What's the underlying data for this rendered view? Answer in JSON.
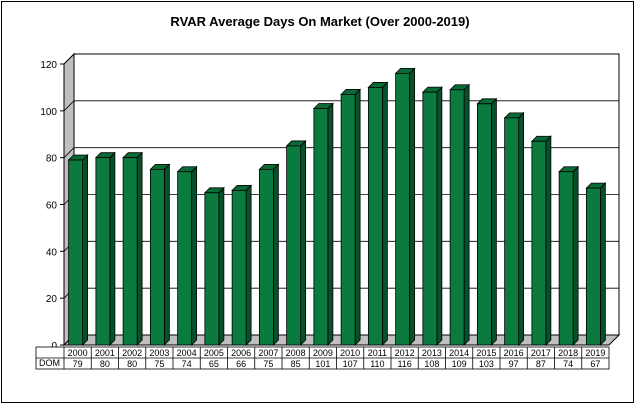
{
  "chart_data": {
    "type": "bar",
    "title": "RVAR Average Days On Market (Over 2000-2019)",
    "categories": [
      "2000",
      "2001",
      "2002",
      "2003",
      "2004",
      "2005",
      "2006",
      "2007",
      "2008",
      "2009",
      "2010",
      "2011",
      "2012",
      "2013",
      "2014",
      "2015",
      "2016",
      "2017",
      "2018",
      "2019"
    ],
    "series": [
      {
        "name": "DOM",
        "values": [
          79,
          80,
          80,
          75,
          74,
          65,
          66,
          75,
          85,
          101,
          107,
          110,
          116,
          108,
          109,
          103,
          97,
          87,
          74,
          67
        ]
      }
    ],
    "ylim": [
      0,
      120
    ],
    "yticks": [
      0,
      20,
      40,
      60,
      80,
      100,
      120
    ],
    "grid": true,
    "data_table": true,
    "colors": {
      "bar_front": "#0b7a3e",
      "bar_side": "#06502a",
      "bar_top": "#0a6a36",
      "wall": "#ffffff",
      "floor": "#c0c0c0",
      "grid": "#000000"
    }
  }
}
